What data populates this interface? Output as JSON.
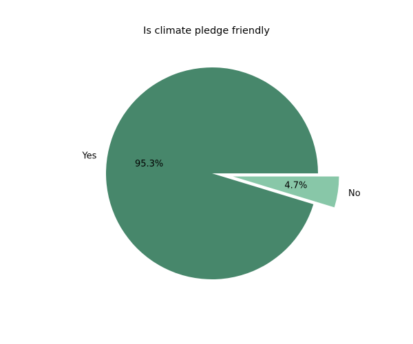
{
  "chart_data": {
    "type": "pie",
    "title": "Is climate pledge friendly",
    "slices": [
      {
        "label": "Yes",
        "value": 95.3,
        "pct_label": "95.3%",
        "color": "#47876b",
        "exploded": false
      },
      {
        "label": "No",
        "value": 4.7,
        "pct_label": "4.7%",
        "color": "#88c7a8",
        "exploded": true
      }
    ],
    "start_angle_deg": 0,
    "direction": "counterclockwise"
  }
}
